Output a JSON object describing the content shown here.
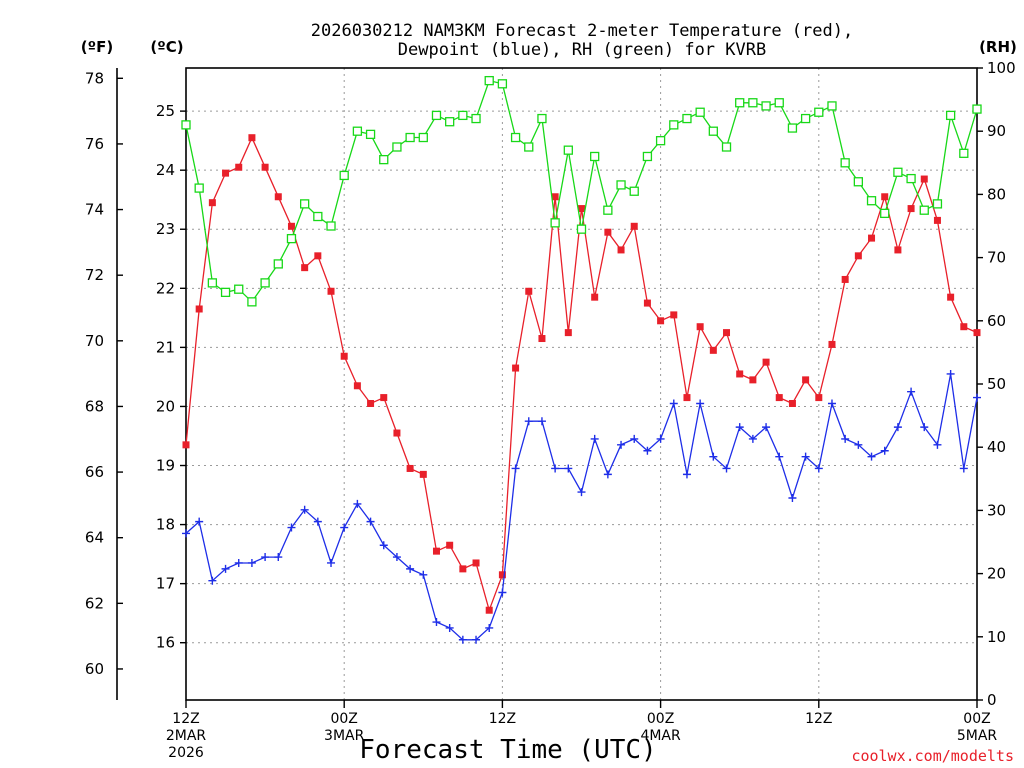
{
  "chart_data": {
    "type": "line",
    "title_lines": [
      "2026030212 NAM3KM Forecast 2-meter Temperature (red),",
      "Dewpoint (blue), RH (green) for KVRB"
    ],
    "xlabel": "Forecast Time (UTC)",
    "credit": "coolwx.com/modelts",
    "units": {
      "fahrenheit": "(ºF)",
      "celsius": "(ºC)",
      "rh": "(RH)"
    },
    "x_range_hours": [
      0,
      60
    ],
    "x_ticks": [
      {
        "hour": 0,
        "lines": [
          "12Z",
          "2MAR",
          "2026"
        ]
      },
      {
        "hour": 12,
        "lines": [
          "00Z",
          "3MAR"
        ]
      },
      {
        "hour": 24,
        "lines": [
          "12Z"
        ]
      },
      {
        "hour": 36,
        "lines": [
          "00Z",
          "4MAR"
        ]
      },
      {
        "hour": 48,
        "lines": [
          "12Z"
        ]
      },
      {
        "hour": 60,
        "lines": [
          "00Z",
          "5MAR"
        ]
      }
    ],
    "celsius_axis": {
      "range": [
        15.03,
        25.73
      ],
      "ticks": [
        16,
        17,
        18,
        19,
        20,
        21,
        22,
        23,
        24,
        25
      ]
    },
    "fahrenheit_axis": {
      "ticks": [
        60,
        62,
        64,
        66,
        68,
        70,
        72,
        74,
        76,
        78
      ]
    },
    "rh_axis": {
      "range": [
        0,
        100
      ],
      "ticks": [
        0,
        10,
        20,
        30,
        40,
        50,
        60,
        70,
        80,
        90,
        100
      ]
    },
    "grid": true,
    "series": [
      {
        "key": "temperature",
        "axis": "celsius",
        "color": "#e8202a",
        "marker": "filled-square",
        "values": [
          19.35,
          21.65,
          23.45,
          23.95,
          24.05,
          24.55,
          24.05,
          23.55,
          23.05,
          22.35,
          22.55,
          21.95,
          20.85,
          20.35,
          20.05,
          20.15,
          19.55,
          18.95,
          18.85,
          17.55,
          17.65,
          17.25,
          17.35,
          16.55,
          17.15,
          20.65,
          21.95,
          21.15,
          23.55,
          21.25,
          23.35,
          21.85,
          22.95,
          22.65,
          23.05,
          21.75,
          21.45,
          21.55,
          20.15,
          21.35,
          20.95,
          21.25,
          20.55,
          20.45,
          20.75,
          20.15,
          20.05,
          20.45,
          20.15,
          21.05,
          22.15,
          22.55,
          22.85,
          23.55,
          22.65,
          23.35,
          23.85,
          23.15,
          21.85,
          21.35,
          21.25
        ]
      },
      {
        "key": "dewpoint",
        "axis": "celsius",
        "color": "#1e2ee8",
        "marker": "plus",
        "values": [
          17.85,
          18.05,
          17.05,
          17.25,
          17.35,
          17.35,
          17.45,
          17.45,
          17.95,
          18.25,
          18.05,
          17.35,
          17.95,
          18.35,
          18.05,
          17.65,
          17.45,
          17.25,
          17.15,
          16.35,
          16.25,
          16.05,
          16.05,
          16.25,
          16.85,
          18.95,
          19.75,
          19.75,
          18.95,
          18.95,
          18.55,
          19.45,
          18.85,
          19.35,
          19.45,
          19.25,
          19.45,
          20.05,
          18.85,
          20.05,
          19.15,
          18.95,
          19.65,
          19.45,
          19.65,
          19.15,
          18.45,
          19.15,
          18.95,
          20.05,
          19.45,
          19.35,
          19.15,
          19.25,
          19.65,
          20.25,
          19.65,
          19.35,
          20.55,
          18.95,
          20.15
        ]
      },
      {
        "key": "rh",
        "axis": "rh",
        "color": "#18d818",
        "marker": "open-square",
        "values": [
          91,
          81,
          66,
          64.5,
          65,
          63,
          66,
          69,
          73,
          78.5,
          76.5,
          75,
          83,
          90,
          89.5,
          85.5,
          87.5,
          89,
          89,
          92.5,
          91.5,
          92.5,
          92,
          98,
          97.5,
          89,
          87.5,
          92,
          75.5,
          87,
          74.5,
          86,
          77.5,
          81.5,
          80.5,
          86,
          88.5,
          91,
          92,
          93,
          90,
          87.5,
          94.5,
          94.5,
          94,
          94.5,
          90.5,
          92,
          93,
          94,
          85,
          82,
          79,
          77,
          83.5,
          82.5,
          77.5,
          78.5,
          92.5,
          86.5,
          93.5
        ]
      }
    ]
  }
}
